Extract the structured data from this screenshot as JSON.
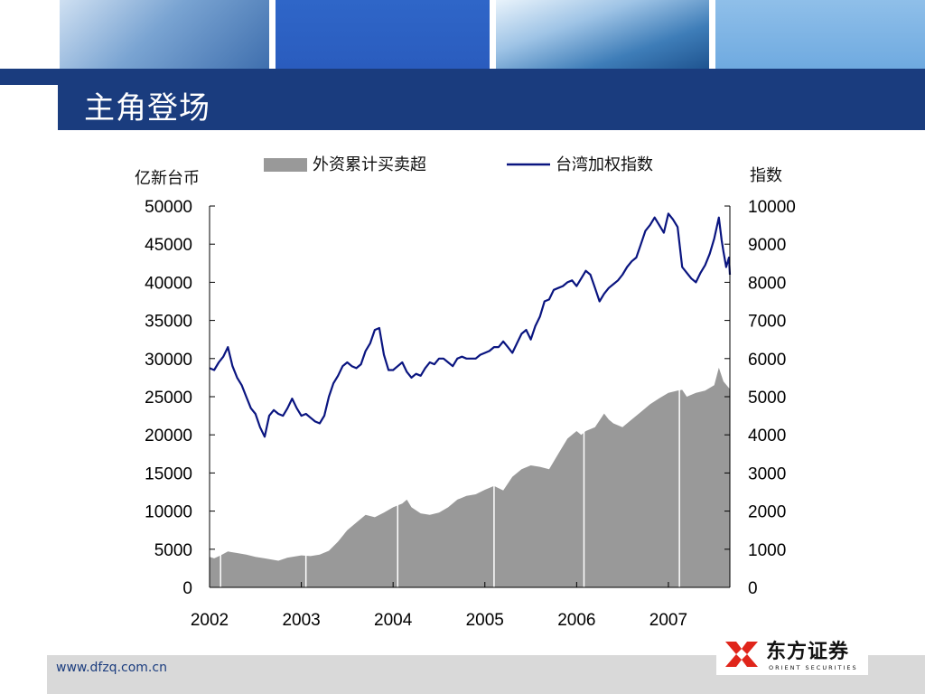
{
  "slide": {
    "title": "主角登场",
    "footer_url": "www.dfzq.com.cn",
    "logo_name": "东方证券",
    "logo_subtitle": "ORIENT SECURITIES"
  },
  "colors": {
    "band": "#1a3c7e",
    "area": "#999999",
    "line": "#0a1580",
    "footer": "#d9d9d9",
    "logo_red": "#e0251b"
  },
  "chart_data": {
    "type": "line",
    "left_axis_label": "亿新台币",
    "right_axis_label": "指数",
    "left_ylim": [
      0,
      50000
    ],
    "right_ylim": [
      0,
      10000
    ],
    "left_ticks": [
      "50000",
      "45000",
      "40000",
      "35000",
      "30000",
      "25000",
      "20000",
      "15000",
      "10000",
      "5000",
      "0"
    ],
    "right_ticks": [
      "10000",
      "9000",
      "8000",
      "7000",
      "6000",
      "5000",
      "4000",
      "3000",
      "2000",
      "1000",
      "0"
    ],
    "x_ticks": [
      "2002",
      "2003",
      "2004",
      "2005",
      "2006",
      "2007"
    ],
    "xlim": [
      2002,
      2007.67
    ],
    "legend": {
      "area_label": "外资累计买卖超",
      "line_label": "台湾加权指数"
    },
    "series": [
      {
        "name": "外资累计买卖超",
        "kind": "area",
        "axis": "left",
        "x": [
          2002.0,
          2002.05,
          2002.12,
          2002.2,
          2002.3,
          2002.4,
          2002.5,
          2002.6,
          2002.75,
          2002.85,
          2003.0,
          2003.1,
          2003.2,
          2003.3,
          2003.4,
          2003.5,
          2003.6,
          2003.7,
          2003.8,
          2003.9,
          2004.0,
          2004.1,
          2004.15,
          2004.2,
          2004.3,
          2004.4,
          2004.5,
          2004.6,
          2004.7,
          2004.8,
          2004.9,
          2005.0,
          2005.1,
          2005.2,
          2005.3,
          2005.4,
          2005.5,
          2005.6,
          2005.7,
          2005.8,
          2005.9,
          2006.0,
          2006.05,
          2006.1,
          2006.2,
          2006.3,
          2006.35,
          2006.4,
          2006.5,
          2006.6,
          2006.7,
          2006.8,
          2006.9,
          2007.0,
          2007.1,
          2007.15,
          2007.2,
          2007.3,
          2007.4,
          2007.5,
          2007.55,
          2007.6,
          2007.67
        ],
        "values": [
          4000,
          3800,
          4200,
          4700,
          4500,
          4300,
          4000,
          3800,
          3500,
          3900,
          4200,
          4100,
          4300,
          4800,
          6000,
          7500,
          8500,
          9500,
          9200,
          9800,
          10500,
          11000,
          11500,
          10500,
          9700,
          9500,
          9800,
          10500,
          11500,
          12000,
          12200,
          12800,
          13300,
          12700,
          14500,
          15500,
          16000,
          15800,
          15500,
          17500,
          19500,
          20500,
          20000,
          20500,
          21000,
          22800,
          22000,
          21500,
          21000,
          22000,
          23000,
          24000,
          24800,
          25500,
          25800,
          25900,
          25000,
          25500,
          25800,
          26500,
          28800,
          27000,
          26000
        ]
      },
      {
        "name": "台湾加权指数",
        "kind": "line",
        "axis": "right",
        "x": [
          2002.0,
          2002.05,
          2002.1,
          2002.15,
          2002.2,
          2002.25,
          2002.3,
          2002.35,
          2002.4,
          2002.45,
          2002.5,
          2002.55,
          2002.6,
          2002.65,
          2002.7,
          2002.75,
          2002.8,
          2002.85,
          2002.9,
          2002.95,
          2003.0,
          2003.05,
          2003.1,
          2003.15,
          2003.2,
          2003.25,
          2003.3,
          2003.35,
          2003.4,
          2003.45,
          2003.5,
          2003.55,
          2003.6,
          2003.65,
          2003.7,
          2003.75,
          2003.8,
          2003.85,
          2003.9,
          2003.95,
          2004.0,
          2004.05,
          2004.1,
          2004.15,
          2004.2,
          2004.25,
          2004.3,
          2004.35,
          2004.4,
          2004.45,
          2004.5,
          2004.55,
          2004.6,
          2004.65,
          2004.7,
          2004.75,
          2004.8,
          2004.85,
          2004.9,
          2004.95,
          2005.0,
          2005.05,
          2005.1,
          2005.15,
          2005.2,
          2005.25,
          2005.3,
          2005.35,
          2005.4,
          2005.45,
          2005.5,
          2005.55,
          2005.6,
          2005.65,
          2005.7,
          2005.75,
          2005.8,
          2005.85,
          2005.9,
          2005.95,
          2006.0,
          2006.05,
          2006.1,
          2006.15,
          2006.2,
          2006.25,
          2006.3,
          2006.35,
          2006.4,
          2006.45,
          2006.5,
          2006.55,
          2006.6,
          2006.65,
          2006.7,
          2006.75,
          2006.8,
          2006.85,
          2006.9,
          2006.95,
          2007.0,
          2007.05,
          2007.1,
          2007.15,
          2007.2,
          2007.25,
          2007.3,
          2007.35,
          2007.4,
          2007.45,
          2007.5,
          2007.55,
          2007.58,
          2007.6,
          2007.63,
          2007.66,
          2007.67
        ],
        "values": [
          5750,
          5700,
          5900,
          6050,
          6300,
          5800,
          5500,
          5300,
          5000,
          4700,
          4550,
          4200,
          3950,
          4500,
          4650,
          4550,
          4500,
          4700,
          4950,
          4700,
          4500,
          4550,
          4450,
          4350,
          4300,
          4500,
          5000,
          5350,
          5550,
          5800,
          5900,
          5800,
          5750,
          5850,
          6200,
          6400,
          6750,
          6800,
          6100,
          5700,
          5700,
          5800,
          5900,
          5650,
          5500,
          5600,
          5550,
          5750,
          5900,
          5850,
          6000,
          6000,
          5900,
          5800,
          6000,
          6050,
          6000,
          6000,
          6000,
          6100,
          6150,
          6200,
          6300,
          6300,
          6450,
          6300,
          6150,
          6400,
          6650,
          6750,
          6500,
          6850,
          7100,
          7500,
          7550,
          7800,
          7850,
          7900,
          8000,
          8050,
          7900,
          8100,
          8300,
          8200,
          7850,
          7500,
          7700,
          7850,
          7950,
          8050,
          8200,
          8400,
          8550,
          8650,
          9000,
          9350,
          9500,
          9700,
          9500,
          9300,
          9800,
          9650,
          9450,
          8400,
          8250,
          8100,
          8000,
          8250,
          8450,
          8750,
          9150,
          9700,
          9100,
          8800,
          8400,
          8650,
          8200
        ]
      }
    ]
  }
}
